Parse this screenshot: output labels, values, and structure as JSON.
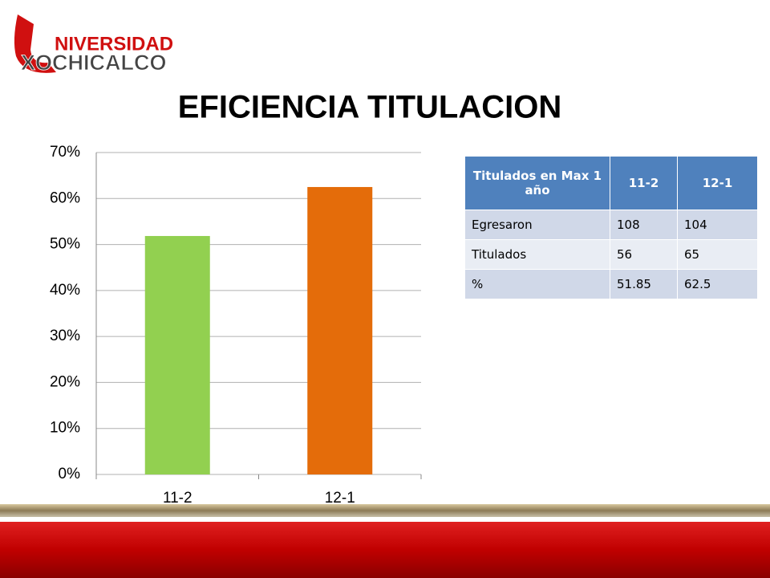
{
  "logo": {
    "line1": "NIVERSIDAD",
    "line2": "XOCHICALCO"
  },
  "title": "EFICIENCIA TITULACION",
  "chart_data": {
    "type": "bar",
    "categories": [
      "11-2",
      "12-1"
    ],
    "values": [
      51.85,
      62.5
    ],
    "colors": [
      "#92d050",
      "#e46c0a"
    ],
    "ylim": [
      0,
      70
    ],
    "yticks": [
      {
        "value": 0,
        "label": "0%"
      },
      {
        "value": 10,
        "label": "10%"
      },
      {
        "value": 20,
        "label": "20%"
      },
      {
        "value": 30,
        "label": "30%"
      },
      {
        "value": 40,
        "label": "40%"
      },
      {
        "value": 50,
        "label": "50%"
      },
      {
        "value": 60,
        "label": "60%"
      },
      {
        "value": 70,
        "label": "70%"
      }
    ],
    "grid": true
  },
  "table": {
    "header": [
      "Titulados en Max  1 año",
      "11-2",
      "12-1"
    ],
    "rows": [
      [
        "Egresaron",
        108,
        104
      ],
      [
        "Titulados",
        56,
        65
      ],
      [
        "%",
        51.85,
        62.5
      ]
    ]
  }
}
